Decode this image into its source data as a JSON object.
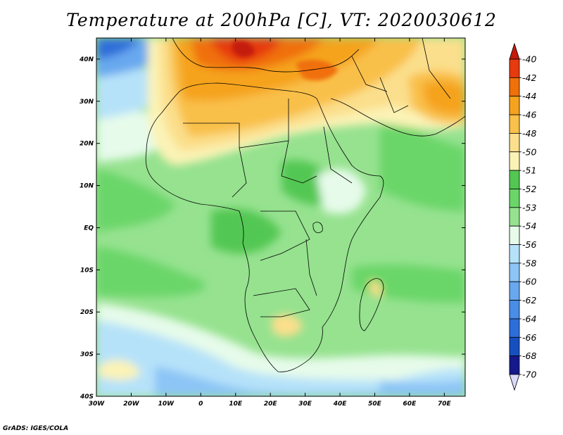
{
  "title": "Temperature at 200hPa [C], VT: 2020030612",
  "credit": "GrADS: IGES/COLA",
  "map": {
    "lon_range": [
      -30,
      76
    ],
    "lat_range": [
      -40,
      45
    ],
    "x_ticks": [
      {
        "lon": -30,
        "label": "30W"
      },
      {
        "lon": -20,
        "label": "20W"
      },
      {
        "lon": -10,
        "label": "10W"
      },
      {
        "lon": 0,
        "label": "0"
      },
      {
        "lon": 10,
        "label": "10E"
      },
      {
        "lon": 20,
        "label": "20E"
      },
      {
        "lon": 30,
        "label": "30E"
      },
      {
        "lon": 40,
        "label": "40E"
      },
      {
        "lon": 50,
        "label": "50E"
      },
      {
        "lon": 60,
        "label": "60E"
      },
      {
        "lon": 70,
        "label": "70E"
      }
    ],
    "y_ticks": [
      {
        "lat": 40,
        "label": "40N"
      },
      {
        "lat": 30,
        "label": "30N"
      },
      {
        "lat": 20,
        "label": "20N"
      },
      {
        "lat": 10,
        "label": "10N"
      },
      {
        "lat": 0,
        "label": "EQ"
      },
      {
        "lat": -10,
        "label": "10S"
      },
      {
        "lat": -20,
        "label": "20S"
      },
      {
        "lat": -30,
        "label": "30S"
      },
      {
        "lat": -40,
        "label": "40S"
      }
    ]
  },
  "colorbar": {
    "levels": [
      "-40",
      "-42",
      "-44",
      "-46",
      "-48",
      "-50",
      "-51",
      "-52",
      "-53",
      "-54",
      "-56",
      "-58",
      "-60",
      "-62",
      "-64",
      "-66",
      "-68",
      "-70"
    ],
    "colors": [
      "#e63a0f",
      "#f0700a",
      "#f5a31f",
      "#f9c04a",
      "#fbdf8c",
      "#fbf3b6",
      "#52c752",
      "#6ad669",
      "#96e28f",
      "#e6fbea",
      "#b6e2f9",
      "#8cc5f6",
      "#68a8ef",
      "#4a8de6",
      "#2d6ed9",
      "#1650c0",
      "#15198c"
    ],
    "top_arrow_color": "#c41a0a",
    "bottom_arrow_color": "#d9d9fb"
  }
}
